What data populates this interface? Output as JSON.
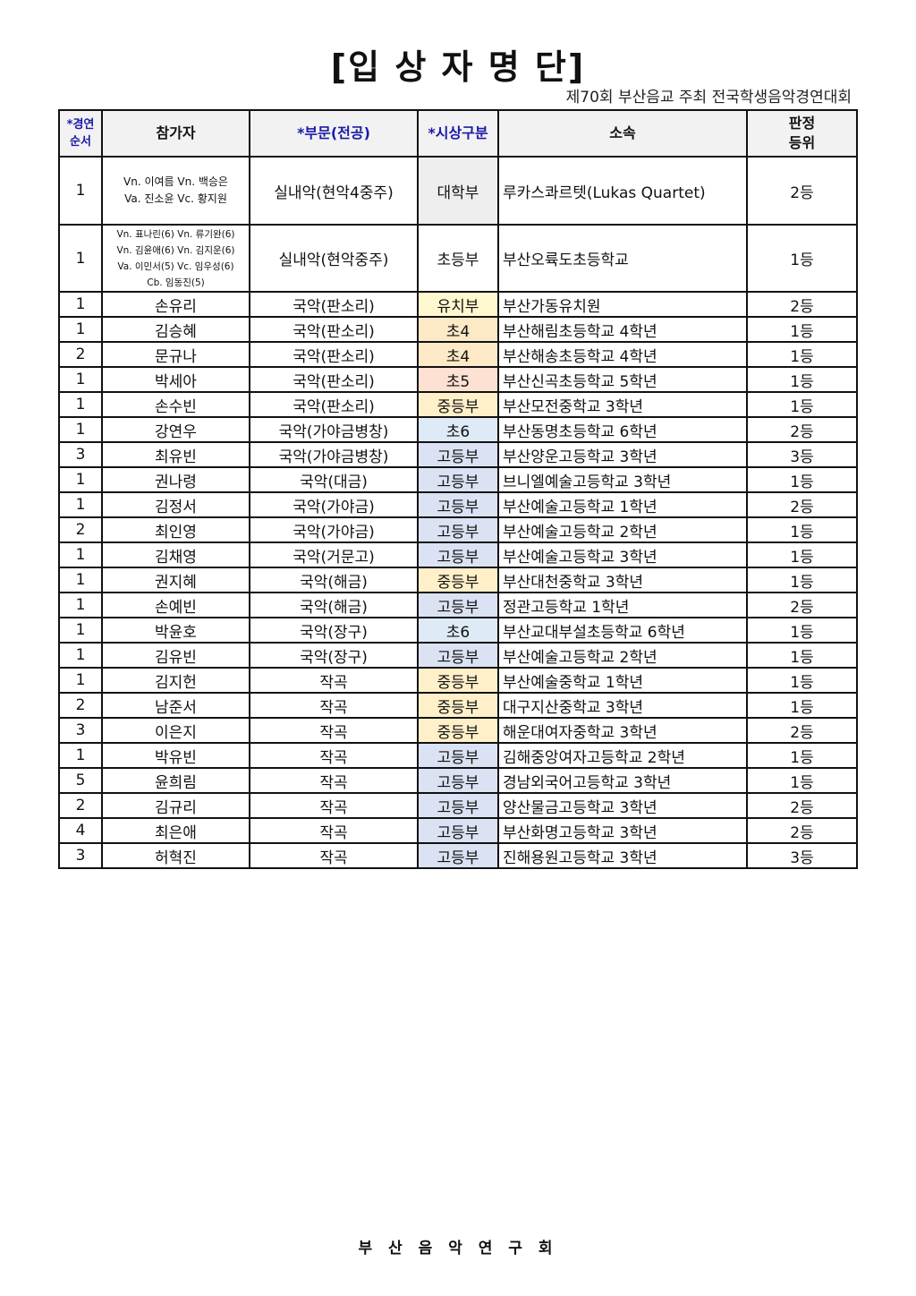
{
  "title": "[입 상 자 명 단]",
  "subtitle": "제70회 부산음교 주최 전국학생음악경연대회",
  "headers": {
    "order_line1": "*경연",
    "order_line2": "순서",
    "participant": "참가자",
    "division": "*부문(전공)",
    "category": "*시상구분",
    "affiliation": "소속",
    "rank_line1": "판정",
    "rank_line2": "등위"
  },
  "category_colors": {
    "대학부": "#eeeeee",
    "초등부": "#ffffff",
    "유치부": "#fff8cf",
    "초4": "#fde9c6",
    "초5": "#fde1d3",
    "중등부": "#fff0c9",
    "초6": "#deebf7",
    "고등부": "#dbe2f3"
  },
  "rows": [
    {
      "order": "1",
      "participant_lines": [
        "Vn. 이여름 Vn. 백승은",
        "Va. 진소윤 Vc. 황지원"
      ],
      "division": "실내악(현악4중주)",
      "category": "대학부",
      "affiliation": "루카스콰르텟(Lukas Quartet)",
      "rank": "2등"
    },
    {
      "order": "1",
      "participant_lines": [
        "Vn. 표나린(6) Vn. 류기완(6)",
        "Vn. 김윤애(6) Vn. 김지운(6)",
        "Va. 이민서(5) Vc. 임우성(6)",
        "Cb. 임동진(5)"
      ],
      "division": "실내악(현악중주)",
      "category": "초등부",
      "affiliation": "부산오륙도초등학교",
      "rank": "1등"
    },
    {
      "order": "1",
      "participant": "손유리",
      "division": "국악(판소리)",
      "category": "유치부",
      "affiliation": "부산가동유치원",
      "rank": "2등"
    },
    {
      "order": "1",
      "participant": "김승혜",
      "division": "국악(판소리)",
      "category": "초4",
      "affiliation": "부산해림초등학교 4학년",
      "rank": "1등"
    },
    {
      "order": "2",
      "participant": "문규나",
      "division": "국악(판소리)",
      "category": "초4",
      "affiliation": "부산해송초등학교 4학년",
      "rank": "1등"
    },
    {
      "order": "1",
      "participant": "박세아",
      "division": "국악(판소리)",
      "category": "초5",
      "affiliation": "부산신곡초등학교 5학년",
      "rank": "1등"
    },
    {
      "order": "1",
      "participant": "손수빈",
      "division": "국악(판소리)",
      "category": "중등부",
      "affiliation": "부산모전중학교 3학년",
      "rank": "1등"
    },
    {
      "order": "1",
      "participant": "강연우",
      "division": "국악(가야금병창)",
      "category": "초6",
      "affiliation": "부산동명초등학교 6학년",
      "rank": "2등"
    },
    {
      "order": "3",
      "participant": "최유빈",
      "division": "국악(가야금병창)",
      "category": "고등부",
      "affiliation": "부산양운고등학교 3학년",
      "rank": "3등"
    },
    {
      "order": "1",
      "participant": "권나령",
      "division": "국악(대금)",
      "category": "고등부",
      "affiliation": "브니엘예술고등학교 3학년",
      "rank": "1등"
    },
    {
      "order": "1",
      "participant": "김정서",
      "division": "국악(가야금)",
      "category": "고등부",
      "affiliation": "부산예술고등학교 1학년",
      "rank": "2등"
    },
    {
      "order": "2",
      "participant": "최인영",
      "division": "국악(가야금)",
      "category": "고등부",
      "affiliation": "부산예술고등학교 2학년",
      "rank": "1등"
    },
    {
      "order": "1",
      "participant": "김채영",
      "division": "국악(거문고)",
      "category": "고등부",
      "affiliation": "부산예술고등학교 3학년",
      "rank": "1등"
    },
    {
      "order": "1",
      "participant": "권지혜",
      "division": "국악(해금)",
      "category": "중등부",
      "affiliation": "부산대천중학교 3학년",
      "rank": "1등"
    },
    {
      "order": "1",
      "participant": "손예빈",
      "division": "국악(해금)",
      "category": "고등부",
      "affiliation": "정관고등학교 1학년",
      "rank": "2등"
    },
    {
      "order": "1",
      "participant": "박윤호",
      "division": "국악(장구)",
      "category": "초6",
      "affiliation": "부산교대부설초등학교 6학년",
      "rank": "1등"
    },
    {
      "order": "1",
      "participant": "김유빈",
      "division": "국악(장구)",
      "category": "고등부",
      "affiliation": "부산예술고등학교 2학년",
      "rank": "1등"
    },
    {
      "order": "1",
      "participant": "김지헌",
      "division": "작곡",
      "category": "중등부",
      "affiliation": "부산예술중학교 1학년",
      "rank": "1등"
    },
    {
      "order": "2",
      "participant": "남준서",
      "division": "작곡",
      "category": "중등부",
      "affiliation": "대구지산중학교 3학년",
      "rank": "1등"
    },
    {
      "order": "3",
      "participant": "이은지",
      "division": "작곡",
      "category": "중등부",
      "affiliation": "해운대여자중학교 3학년",
      "rank": "2등"
    },
    {
      "order": "1",
      "participant": "박유빈",
      "division": "작곡",
      "category": "고등부",
      "affiliation": "김해중앙여자고등학교 2학년",
      "rank": "1등"
    },
    {
      "order": "5",
      "participant": "윤희림",
      "division": "작곡",
      "category": "고등부",
      "affiliation": "경남외국어고등학교 3학년",
      "rank": "1등"
    },
    {
      "order": "2",
      "participant": "김규리",
      "division": "작곡",
      "category": "고등부",
      "affiliation": "양산물금고등학교 3학년",
      "rank": "2등"
    },
    {
      "order": "4",
      "participant": "최은애",
      "division": "작곡",
      "category": "고등부",
      "affiliation": "부산화명고등학교 3학년",
      "rank": "2등"
    },
    {
      "order": "3",
      "participant": "허혁진",
      "division": "작곡",
      "category": "고등부",
      "affiliation": "진해용원고등학교 3학년",
      "rank": "3등"
    }
  ],
  "footer": "부 산 음 악 연 구 회"
}
